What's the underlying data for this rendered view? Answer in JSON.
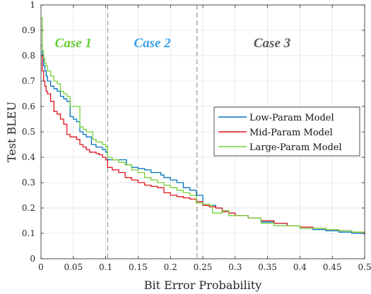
{
  "chart_data": {
    "type": "line",
    "xlabel": "Bit Error Probability",
    "ylabel": "Test BLEU",
    "xlim": [
      0,
      0.5
    ],
    "ylim": [
      0,
      1
    ],
    "xticks": [
      0,
      0.05,
      0.1,
      0.15,
      0.2,
      0.25,
      0.3,
      0.35,
      0.4,
      0.45,
      0.5
    ],
    "xtick_labels": [
      "0",
      "0.05",
      "0.1",
      "0.15",
      "0.2",
      "0.25",
      "0.3",
      "0.35",
      "0.4",
      "0.45",
      "0.5"
    ],
    "yticks": [
      0,
      0.1,
      0.2,
      0.3,
      0.4,
      0.5,
      0.6,
      0.7,
      0.8,
      0.9,
      1
    ],
    "ytick_labels": [
      "0",
      "0.1",
      "0.2",
      "0.3",
      "0.4",
      "0.5",
      "0.6",
      "0.7",
      "0.8",
      "0.9",
      "1"
    ],
    "grid": true,
    "legend_position": "middle-right",
    "vertical_lines": [
      0.103,
      0.241
    ],
    "annotations": [
      {
        "text": "Case 1",
        "x": 0.05,
        "y": 0.85,
        "color": "#66cc33"
      },
      {
        "text": "Case 2",
        "x": 0.172,
        "y": 0.85,
        "color": "#3aa0e6"
      },
      {
        "text": "Case 3",
        "x": 0.357,
        "y": 0.85,
        "color": "#595959"
      }
    ],
    "series": [
      {
        "name": "Low-Param Model",
        "color": "#0072bd",
        "x": [
          0,
          0.002,
          0.004,
          0.006,
          0.008,
          0.01,
          0.015,
          0.02,
          0.025,
          0.03,
          0.035,
          0.04,
          0.045,
          0.05,
          0.055,
          0.06,
          0.065,
          0.07,
          0.075,
          0.078,
          0.085,
          0.09,
          0.095,
          0.1,
          0.103,
          0.11,
          0.12,
          0.13,
          0.132,
          0.14,
          0.15,
          0.16,
          0.17,
          0.18,
          0.185,
          0.19,
          0.2,
          0.21,
          0.22,
          0.23,
          0.24,
          0.25,
          0.26,
          0.27,
          0.28,
          0.29,
          0.3,
          0.32,
          0.34,
          0.36,
          0.38,
          0.4,
          0.42,
          0.44,
          0.46,
          0.48,
          0.5
        ],
        "y": [
          0.84,
          0.8,
          0.76,
          0.74,
          0.72,
          0.7,
          0.68,
          0.67,
          0.66,
          0.64,
          0.63,
          0.62,
          0.56,
          0.55,
          0.54,
          0.5,
          0.49,
          0.48,
          0.48,
          0.45,
          0.44,
          0.44,
          0.43,
          0.42,
          0.39,
          0.39,
          0.39,
          0.39,
          0.37,
          0.36,
          0.355,
          0.35,
          0.34,
          0.34,
          0.33,
          0.32,
          0.31,
          0.3,
          0.28,
          0.27,
          0.25,
          0.215,
          0.21,
          0.2,
          0.19,
          0.18,
          0.17,
          0.16,
          0.145,
          0.14,
          0.13,
          0.12,
          0.115,
          0.11,
          0.105,
          0.1,
          0.095
        ]
      },
      {
        "name": "Mid-Param Model",
        "color": "#e3121b",
        "x": [
          0,
          0.002,
          0.004,
          0.006,
          0.008,
          0.01,
          0.015,
          0.02,
          0.025,
          0.03,
          0.035,
          0.04,
          0.045,
          0.05,
          0.055,
          0.06,
          0.065,
          0.07,
          0.075,
          0.08,
          0.085,
          0.09,
          0.095,
          0.1,
          0.103,
          0.11,
          0.12,
          0.13,
          0.14,
          0.15,
          0.16,
          0.17,
          0.18,
          0.19,
          0.2,
          0.21,
          0.22,
          0.23,
          0.24,
          0.25,
          0.26,
          0.27,
          0.28,
          0.29,
          0.3,
          0.32,
          0.34,
          0.36,
          0.38,
          0.4,
          0.42,
          0.44,
          0.46,
          0.48,
          0.5
        ],
        "y": [
          0.8,
          0.74,
          0.7,
          0.68,
          0.66,
          0.65,
          0.62,
          0.58,
          0.57,
          0.55,
          0.53,
          0.49,
          0.48,
          0.48,
          0.47,
          0.45,
          0.44,
          0.43,
          0.42,
          0.42,
          0.415,
          0.41,
          0.4,
          0.39,
          0.36,
          0.35,
          0.34,
          0.32,
          0.31,
          0.3,
          0.29,
          0.285,
          0.28,
          0.26,
          0.25,
          0.245,
          0.24,
          0.235,
          0.225,
          0.21,
          0.205,
          0.2,
          0.185,
          0.18,
          0.17,
          0.16,
          0.15,
          0.14,
          0.13,
          0.125,
          0.12,
          0.115,
          0.11,
          0.105,
          0.1
        ]
      },
      {
        "name": "Large-Param Model",
        "color": "#77d134",
        "x": [
          0,
          0.002,
          0.004,
          0.006,
          0.008,
          0.01,
          0.015,
          0.02,
          0.025,
          0.03,
          0.035,
          0.04,
          0.045,
          0.05,
          0.055,
          0.06,
          0.065,
          0.07,
          0.075,
          0.08,
          0.085,
          0.09,
          0.095,
          0.1,
          0.103,
          0.11,
          0.12,
          0.13,
          0.14,
          0.15,
          0.16,
          0.17,
          0.18,
          0.19,
          0.2,
          0.21,
          0.22,
          0.23,
          0.24,
          0.25,
          0.26,
          0.265,
          0.27,
          0.28,
          0.29,
          0.3,
          0.32,
          0.34,
          0.36,
          0.38,
          0.4,
          0.42,
          0.44,
          0.46,
          0.48,
          0.5
        ],
        "y": [
          0.95,
          0.82,
          0.79,
          0.77,
          0.76,
          0.74,
          0.72,
          0.7,
          0.69,
          0.66,
          0.65,
          0.64,
          0.6,
          0.6,
          0.6,
          0.52,
          0.51,
          0.5,
          0.5,
          0.47,
          0.46,
          0.46,
          0.45,
          0.44,
          0.4,
          0.39,
          0.38,
          0.37,
          0.35,
          0.34,
          0.32,
          0.31,
          0.3,
          0.29,
          0.28,
          0.27,
          0.26,
          0.25,
          0.22,
          0.215,
          0.21,
          0.18,
          0.18,
          0.19,
          0.17,
          0.17,
          0.16,
          0.14,
          0.13,
          0.13,
          0.12,
          0.12,
          0.115,
          0.11,
          0.105,
          0.105
        ]
      }
    ]
  }
}
